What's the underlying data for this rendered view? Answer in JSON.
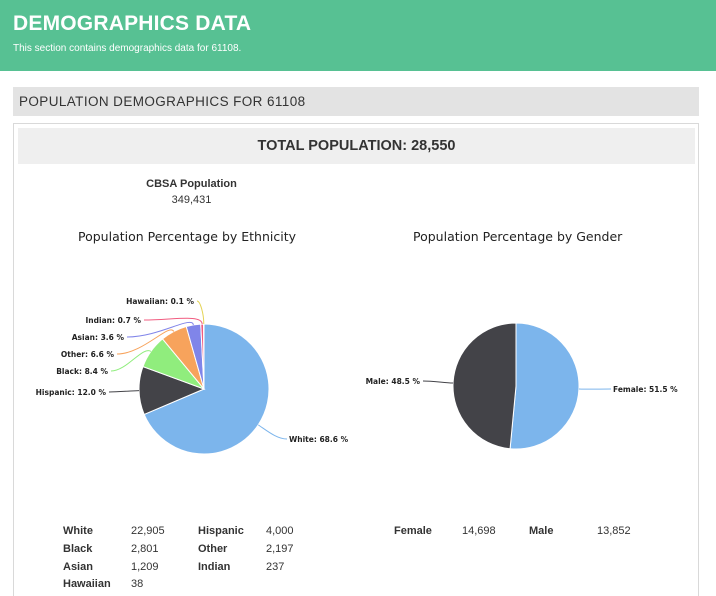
{
  "header": {
    "title": "DEMOGRAPHICS DATA",
    "subtitle": "This section contains demographics data for 61108."
  },
  "section": {
    "title": "POPULATION DEMOGRAPHICS FOR 61108"
  },
  "total": {
    "label": "TOTAL POPULATION:",
    "value": "28,550"
  },
  "cbsa": {
    "label": "CBSA Population",
    "value": "349,431"
  },
  "ethnicity_stats": [
    {
      "label": "White",
      "value": "22,905"
    },
    {
      "label": "Hispanic",
      "value": "4,000"
    },
    {
      "label": "Black",
      "value": "2,801"
    },
    {
      "label": "Other",
      "value": "2,197"
    },
    {
      "label": "Asian",
      "value": "1,209"
    },
    {
      "label": "Indian",
      "value": "237"
    },
    {
      "label": "Hawaiian",
      "value": "38"
    }
  ],
  "gender_stats": [
    {
      "label": "Female",
      "value": "14,698"
    },
    {
      "label": "Male",
      "value": "13,852"
    }
  ],
  "chart_data": [
    {
      "type": "pie",
      "title": "Population Percentage by Ethnicity",
      "slices": [
        {
          "label": "White",
          "value": 68.6,
          "display": "White: 68.6 %",
          "color": "#7cb5ec"
        },
        {
          "label": "Hispanic",
          "value": 12.0,
          "display": "Hispanic: 12.0 %",
          "color": "#434348"
        },
        {
          "label": "Black",
          "value": 8.4,
          "display": "Black: 8.4 %",
          "color": "#90ed7d"
        },
        {
          "label": "Other",
          "value": 6.6,
          "display": "Other: 6.6 %",
          "color": "#f7a35c"
        },
        {
          "label": "Asian",
          "value": 3.6,
          "display": "Asian: 3.6 %",
          "color": "#8085e9"
        },
        {
          "label": "Indian",
          "value": 0.7,
          "display": "Indian: 0.7 %",
          "color": "#f15c80"
        },
        {
          "label": "Hawaiian",
          "value": 0.1,
          "display": "Hawaiian: 0.1 %",
          "color": "#e4d354"
        }
      ]
    },
    {
      "type": "pie",
      "title": "Population Percentage by Gender",
      "slices": [
        {
          "label": "Female",
          "value": 51.5,
          "display": "Female: 51.5 %",
          "color": "#7cb5ec"
        },
        {
          "label": "Male",
          "value": 48.5,
          "display": "Male: 48.5 %",
          "color": "#434348"
        }
      ]
    }
  ]
}
